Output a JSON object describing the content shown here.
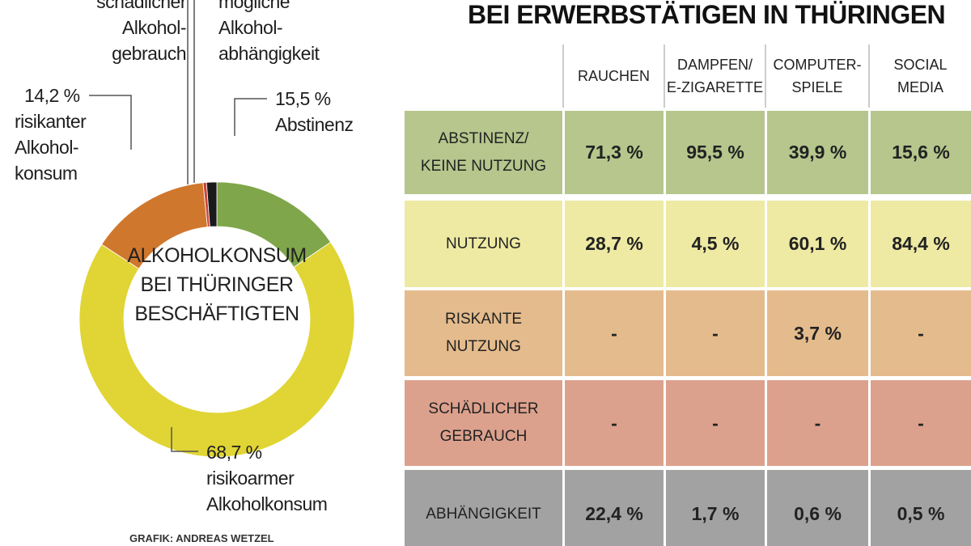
{
  "chart_data": {
    "type": "donut",
    "center_title": "ALKOHOLKONSUM\nBEI THÜRINGER\nBESCHÄFTIGTEN",
    "categories": [
      "Abstinenz",
      "risikoarmer\nAlkoholkonsum",
      "risikanter\nAlkohol-\nkonsum",
      "schädlicher\nAlkohol-\ngebrauch",
      "mögliche\nAlkohol-\nabhängigkeit"
    ],
    "values": [
      15.5,
      68.7,
      14.2,
      0.4,
      1.2
    ],
    "value_labels": [
      "15,5 %",
      "68,7 %",
      "14,2 %",
      null,
      null
    ],
    "colors": [
      "#7fa64a",
      "#e0d534",
      "#d0772e",
      "#c8463c",
      "#1a1a1a"
    ],
    "credit": "GRAFIK: ANDREAS WETZEL"
  },
  "table": {
    "title": "BEI ERWERBSTÄTIGEN IN THÜRINGEN",
    "columns": [
      "RAUCHEN",
      "DAMPFEN/\nE-ZIGARETTE",
      "COMPUTER-\nSPIELE",
      "SOCIAL\nMEDIA"
    ],
    "rows": [
      {
        "label": "ABSTINENZ/\nKEINE NUTZUNG",
        "color": "#b6c68d",
        "cells": [
          "71,3 %",
          "95,5 %",
          "39,9 %",
          "15,6 %"
        ]
      },
      {
        "label": "NUTZUNG",
        "color": "#eeeaa3",
        "cells": [
          "28,7 %",
          "4,5 %",
          "60,1 %",
          "84,4 %"
        ]
      },
      {
        "label": "RISKANTE\nNUTZUNG",
        "color": "#e4bb8c",
        "cells": [
          "-",
          "-",
          "3,7 %",
          "-"
        ]
      },
      {
        "label": "SCHÄDLICHER\nGEBRAUCH",
        "color": "#dca18d",
        "cells": [
          "-",
          "-",
          "-",
          "-"
        ]
      },
      {
        "label": "ABHÄNGIGKEIT",
        "color": "#a2a2a2",
        "cells": [
          "22,4 %",
          "1,7 %",
          "0,6 %",
          "0,5 %"
        ]
      }
    ]
  }
}
